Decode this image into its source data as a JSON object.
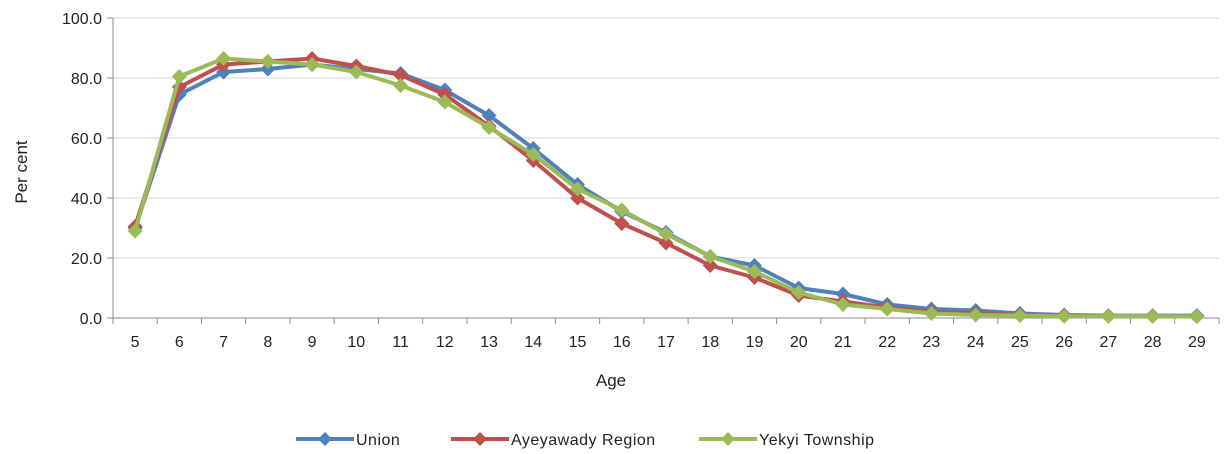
{
  "chart_data": {
    "type": "line",
    "title": "",
    "xlabel": "Age",
    "ylabel": "Per cent",
    "x": [
      "5",
      "6",
      "7",
      "8",
      "9",
      "10",
      "11",
      "12",
      "13",
      "14",
      "15",
      "16",
      "17",
      "18",
      "19",
      "20",
      "21",
      "22",
      "23",
      "24",
      "25",
      "26",
      "27",
      "28",
      "29"
    ],
    "ylim": [
      0,
      100
    ],
    "yticks": [
      "0.0",
      "20.0",
      "40.0",
      "60.0",
      "80.0",
      "100.0"
    ],
    "grid": "horizontal",
    "legend_position": "bottom",
    "series": [
      {
        "name": "Union",
        "color": "#4f81bd",
        "values": [
          30.0,
          74.5,
          82.0,
          83.0,
          84.5,
          83.0,
          81.5,
          76.0,
          67.5,
          56.5,
          44.5,
          35.5,
          28.5,
          20.5,
          17.5,
          10.0,
          8.0,
          4.5,
          3.0,
          2.5,
          1.5,
          1.0,
          0.8,
          0.8,
          0.8
        ]
      },
      {
        "name": "Ayeyawady Region",
        "color": "#c0504d",
        "values": [
          30.5,
          77.0,
          84.5,
          85.5,
          86.5,
          84.0,
          81.0,
          74.5,
          64.0,
          52.5,
          40.0,
          31.5,
          25.0,
          17.5,
          13.5,
          7.5,
          5.5,
          3.5,
          2.0,
          1.5,
          1.0,
          0.8,
          0.6,
          0.6,
          0.5
        ]
      },
      {
        "name": "Yekyi Township",
        "color": "#9bbb59",
        "values": [
          29.0,
          80.5,
          86.5,
          85.5,
          84.5,
          82.0,
          77.5,
          72.0,
          63.5,
          54.5,
          43.0,
          36.0,
          28.0,
          20.5,
          15.5,
          8.5,
          4.5,
          3.0,
          1.5,
          1.0,
          0.8,
          0.6,
          0.6,
          0.6,
          0.5
        ]
      }
    ]
  }
}
